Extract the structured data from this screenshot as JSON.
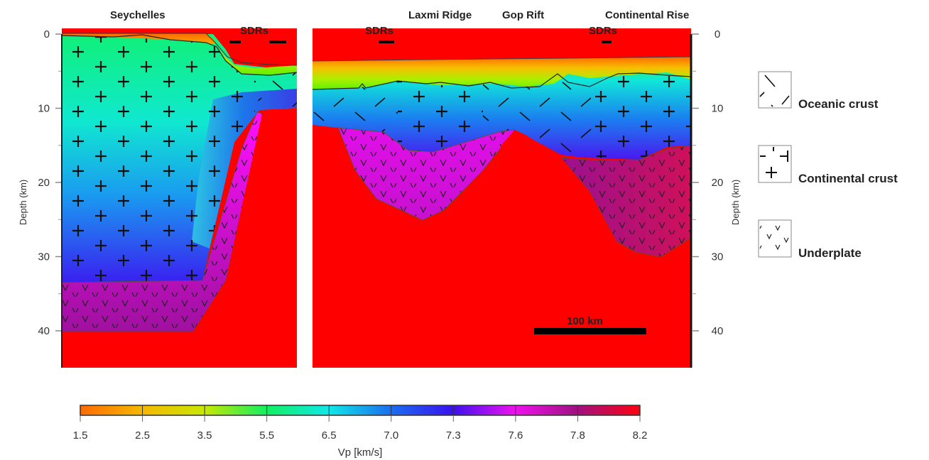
{
  "figure": {
    "region_labels": {
      "seychelles": "Seychelles",
      "sdrs_left": "SDRs",
      "sdrs_mid": "SDRs",
      "laxmi_ridge": "Laxmi Ridge",
      "gop_rift": "Gop Rift",
      "continental_rise": "Continental Rise",
      "sdrs_right": "SDRs"
    },
    "depth_axis": {
      "label": "Depth (km)",
      "ticks": [
        "0",
        "10",
        "20",
        "30",
        "40"
      ],
      "tick_values": [
        0,
        10,
        20,
        30,
        40
      ],
      "range_km": [
        0,
        45
      ]
    },
    "scale_bar": {
      "label": "100 km",
      "length_km": 100
    },
    "legend": [
      {
        "label": "Oceanic crust",
        "pattern": "oceanic-dash-pattern"
      },
      {
        "label": "Continental crust",
        "pattern": "continental-cross-pattern"
      },
      {
        "label": "Underplate",
        "pattern": "underplate-v-pattern"
      }
    ],
    "colorbar": {
      "title": "Vp [km/s]",
      "ticks": [
        "1.5",
        "2.5",
        "3.5",
        "5.5",
        "6.5",
        "7.0",
        "7.3",
        "7.6",
        "7.8",
        "8.2"
      ],
      "colors": [
        "#ff7a00",
        "#f2c800",
        "#8cf000",
        "#00f07a",
        "#10e8e8",
        "#1a6ef0",
        "#3a10f0",
        "#f010f0",
        "#b0108a",
        "#ff0000"
      ]
    }
  }
}
